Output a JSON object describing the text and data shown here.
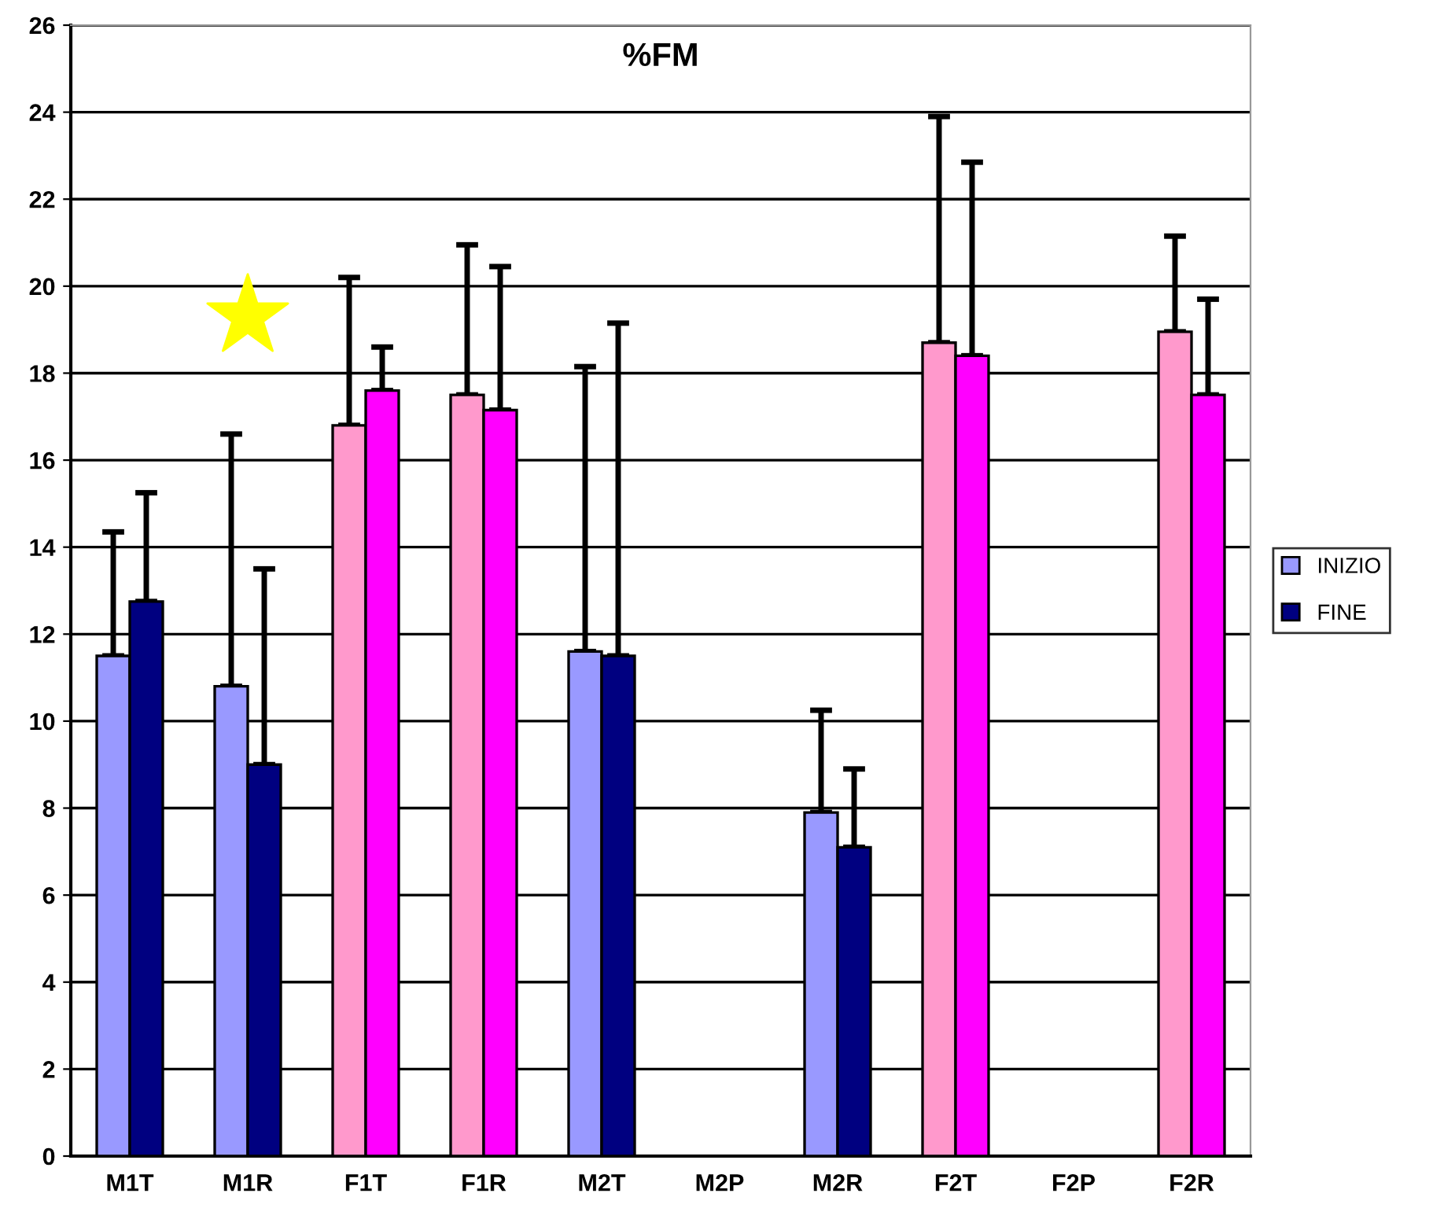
{
  "chart_data": {
    "type": "bar",
    "title": "%FM",
    "categories": [
      "M1T",
      "M1R",
      "F1T",
      "F1R",
      "M2T",
      "M2P",
      "M2R",
      "F2T",
      "F2P",
      "F2R"
    ],
    "series": [
      {
        "name": "INIZIO",
        "color": "#9999ff",
        "colors": [
          "#9999ff",
          "#9999ff",
          "#ff99cc",
          "#ff99cc",
          "#9999ff",
          "#9999ff",
          "#9999ff",
          "#ff99cc",
          "#ff99cc",
          "#ff99cc"
        ],
        "values": [
          11.5,
          10.8,
          16.8,
          17.5,
          11.6,
          null,
          7.9,
          18.7,
          null,
          18.95
        ],
        "errors": [
          [
            11.5,
            14.35
          ],
          [
            10.8,
            16.6
          ],
          [
            16.8,
            20.2
          ],
          [
            17.5,
            20.95
          ],
          [
            11.6,
            18.15
          ],
          null,
          [
            7.9,
            10.25
          ],
          [
            18.7,
            23.9
          ],
          null,
          [
            18.95,
            21.15
          ]
        ]
      },
      {
        "name": "FINE",
        "color": "#000080",
        "colors": [
          "#000080",
          "#000080",
          "#ff00ff",
          "#ff00ff",
          "#000080",
          "#000080",
          "#000080",
          "#ff00ff",
          "#ff00ff",
          "#ff00ff"
        ],
        "values": [
          12.75,
          9.0,
          17.6,
          17.15,
          11.5,
          null,
          7.1,
          18.4,
          null,
          17.5
        ],
        "errors": [
          [
            12.75,
            15.25
          ],
          [
            9.0,
            13.5
          ],
          [
            17.6,
            18.6
          ],
          [
            17.15,
            20.45
          ],
          [
            11.5,
            19.15
          ],
          null,
          [
            7.1,
            8.9
          ],
          [
            18.4,
            22.85
          ],
          null,
          [
            17.5,
            19.7
          ]
        ]
      }
    ],
    "ylim": [
      0,
      26
    ],
    "yticks": [
      0,
      2,
      4,
      6,
      8,
      10,
      12,
      14,
      16,
      18,
      20,
      22,
      24,
      26
    ],
    "grid": "y",
    "legend": "right"
  }
}
